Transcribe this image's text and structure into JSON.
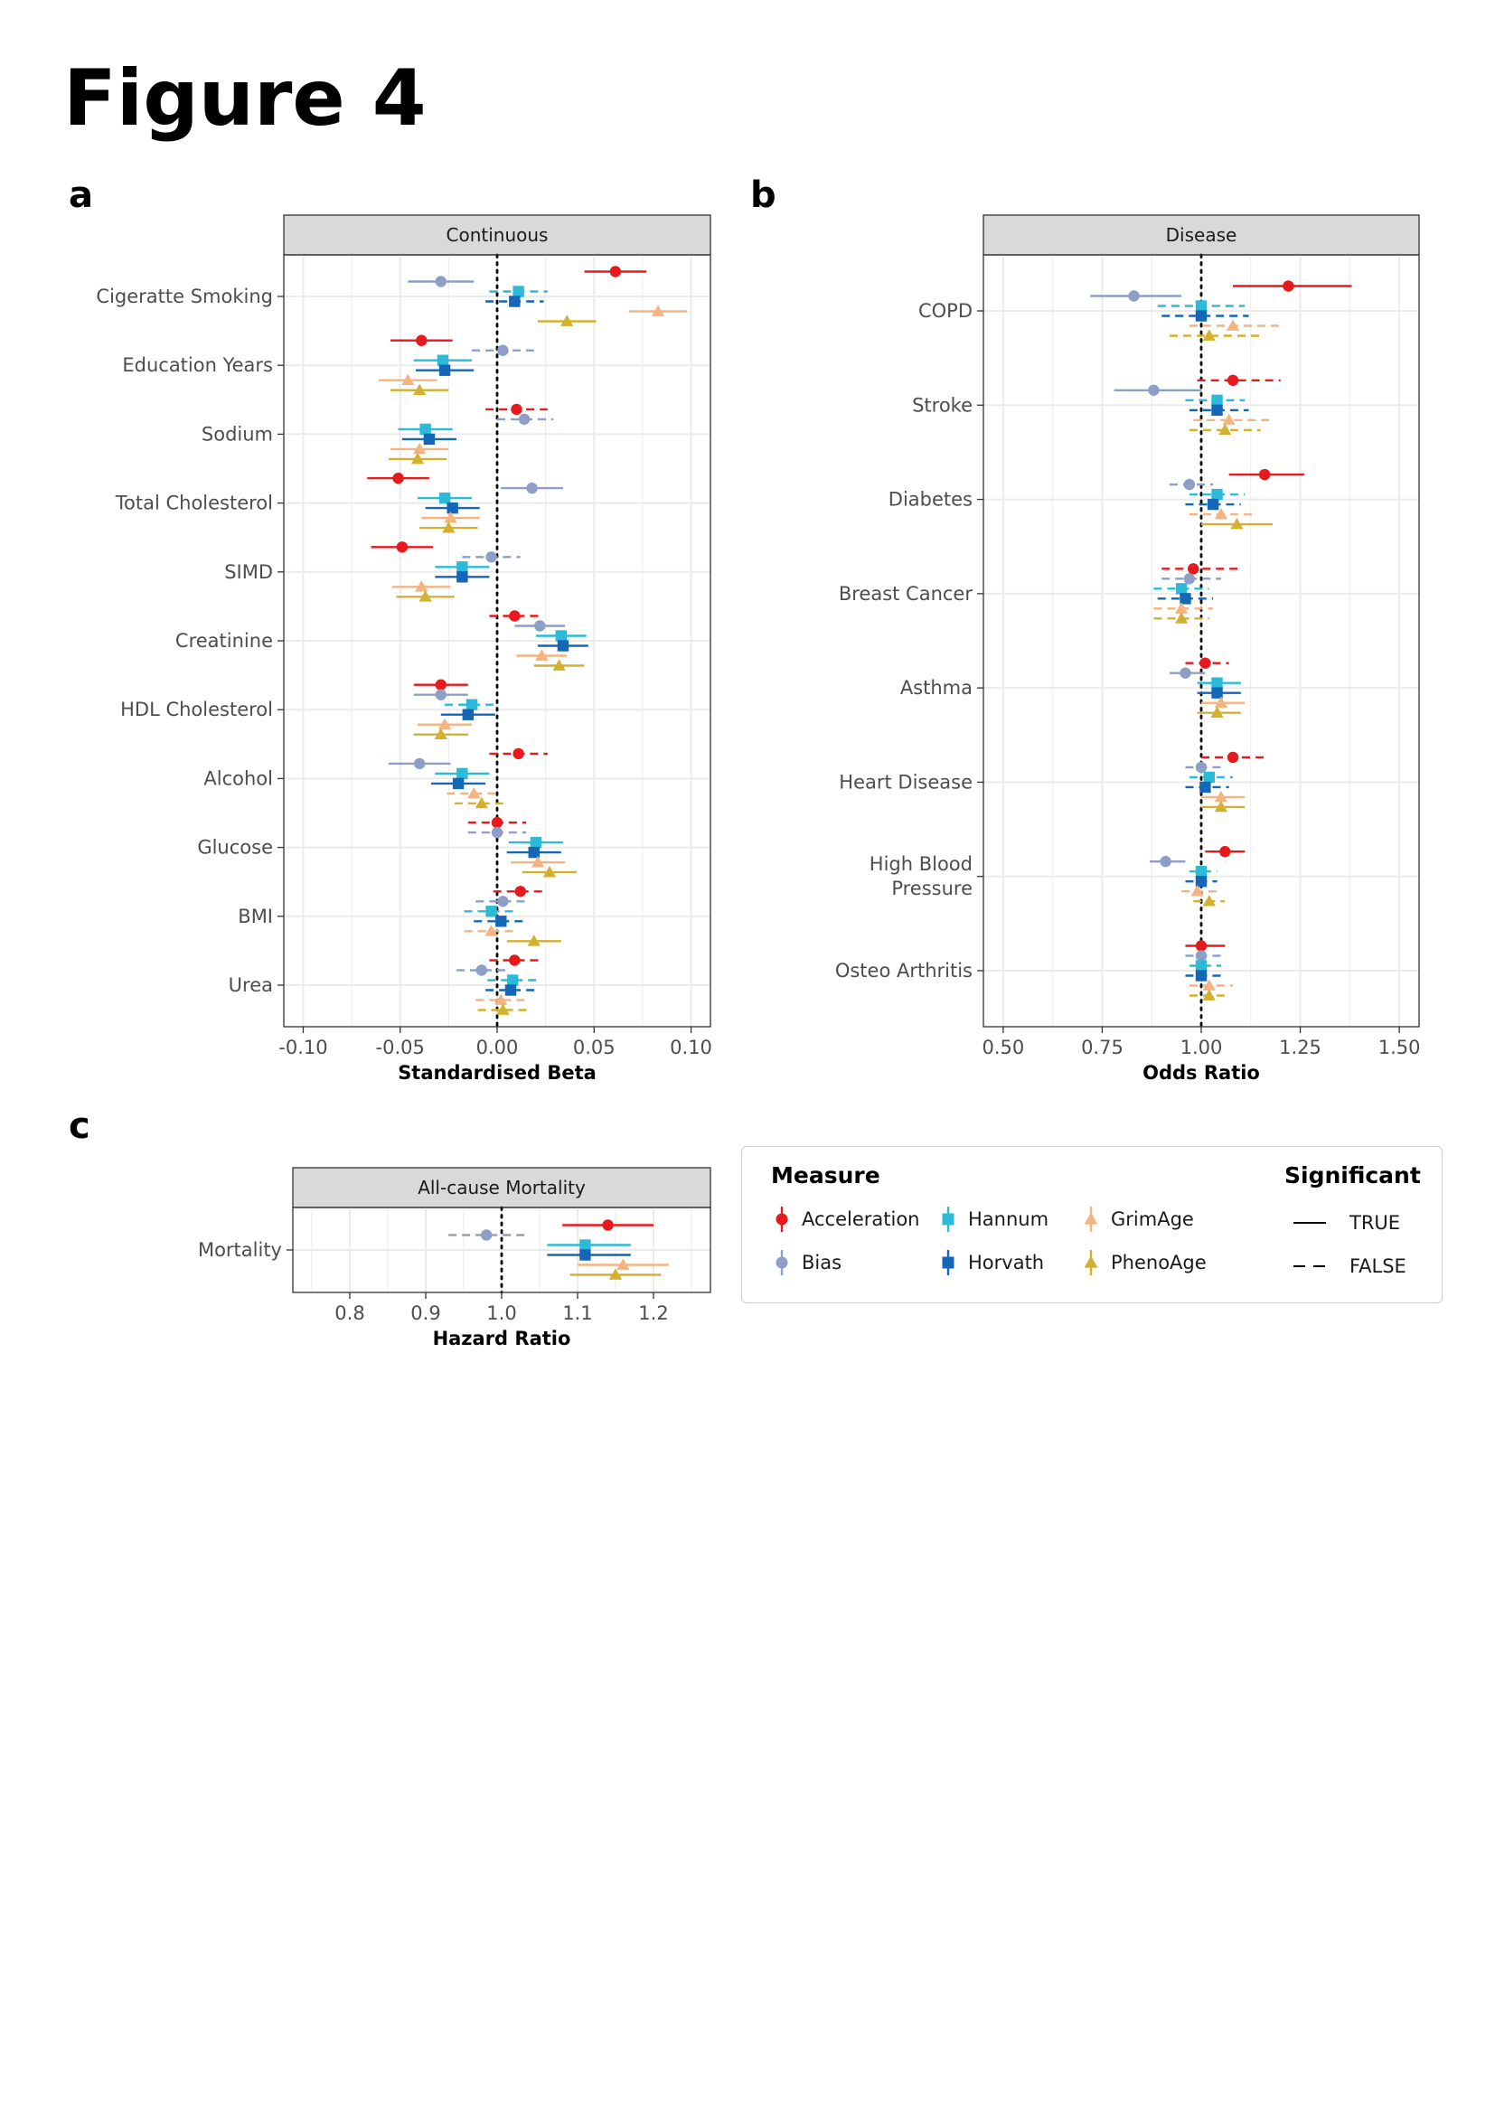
{
  "figure_title": "Figure 4",
  "panel_letters": [
    "a",
    "b",
    "c"
  ],
  "colors": {
    "Acceleration": "#e8191c",
    "Bias": "#8e9fc7",
    "Hannum": "#2bbbd8",
    "Horvath": "#1466b6",
    "GrimAge": "#f3b481",
    "PhenoAge": "#d4b02f"
  },
  "legend": {
    "measure_title": "Measure",
    "measures": [
      {
        "name": "Acceleration",
        "shape": "circle"
      },
      {
        "name": "Bias",
        "shape": "circle"
      },
      {
        "name": "Hannum",
        "shape": "square"
      },
      {
        "name": "Horvath",
        "shape": "square"
      },
      {
        "name": "GrimAge",
        "shape": "triangle"
      },
      {
        "name": "PhenoAge",
        "shape": "triangle"
      }
    ],
    "significant_title": "Significant",
    "significant_levels": [
      "TRUE",
      "FALSE"
    ]
  },
  "chart_data": [
    {
      "id": "a",
      "type": "forest",
      "strip": "Continuous",
      "xlabel": "Standardised Beta",
      "xlim": [
        -0.11,
        0.11
      ],
      "xticks": [
        -0.1,
        -0.05,
        0.0,
        0.05,
        0.1
      ],
      "xtick_labels": [
        "-0.10",
        "-0.05",
        "0.00",
        "0.05",
        "0.10"
      ],
      "reference": 0,
      "grid": true,
      "categories": [
        "Cigeratte Smoking",
        "Education Years",
        "Sodium",
        "Total Cholesterol",
        "SIMD",
        "Creatinine",
        "HDL Cholesterol",
        "Alcohol",
        "Glucose",
        "BMI",
        "Urea"
      ],
      "series": [
        {
          "name": "Acceleration",
          "points": [
            [
              0.061,
              0.045,
              0.077,
              true
            ],
            [
              -0.039,
              -0.055,
              -0.023,
              true
            ],
            [
              0.01,
              -0.006,
              0.026,
              false
            ],
            [
              -0.051,
              -0.067,
              -0.035,
              true
            ],
            [
              -0.049,
              -0.065,
              -0.033,
              true
            ],
            [
              0.009,
              -0.004,
              0.022,
              false
            ],
            [
              -0.029,
              -0.043,
              -0.015,
              true
            ],
            [
              0.011,
              -0.004,
              0.026,
              false
            ],
            [
              0.0,
              -0.015,
              0.015,
              false
            ],
            [
              0.012,
              -0.002,
              0.026,
              false
            ],
            [
              0.009,
              -0.004,
              0.022,
              false
            ]
          ]
        },
        {
          "name": "Bias",
          "points": [
            [
              -0.029,
              -0.046,
              -0.012,
              true
            ],
            [
              0.003,
              -0.013,
              0.019,
              false
            ],
            [
              0.014,
              0.0,
              0.029,
              false
            ],
            [
              0.018,
              0.002,
              0.034,
              true
            ],
            [
              -0.003,
              -0.018,
              0.012,
              false
            ],
            [
              0.022,
              0.009,
              0.035,
              true
            ],
            [
              -0.029,
              -0.043,
              -0.015,
              true
            ],
            [
              -0.04,
              -0.056,
              -0.024,
              true
            ],
            [
              0.0,
              -0.015,
              0.015,
              false
            ],
            [
              0.003,
              -0.011,
              0.017,
              false
            ],
            [
              -0.008,
              -0.021,
              0.005,
              false
            ]
          ]
        },
        {
          "name": "Hannum",
          "points": [
            [
              0.011,
              -0.004,
              0.026,
              false
            ],
            [
              -0.028,
              -0.043,
              -0.013,
              true
            ],
            [
              -0.037,
              -0.051,
              -0.023,
              true
            ],
            [
              -0.027,
              -0.041,
              -0.013,
              true
            ],
            [
              -0.018,
              -0.032,
              -0.004,
              true
            ],
            [
              0.033,
              0.02,
              0.046,
              true
            ],
            [
              -0.013,
              -0.027,
              0.001,
              false
            ],
            [
              -0.018,
              -0.032,
              -0.004,
              true
            ],
            [
              0.02,
              0.006,
              0.034,
              true
            ],
            [
              -0.003,
              -0.017,
              0.011,
              false
            ],
            [
              0.008,
              -0.005,
              0.021,
              false
            ]
          ]
        },
        {
          "name": "Horvath",
          "points": [
            [
              0.009,
              -0.006,
              0.024,
              false
            ],
            [
              -0.027,
              -0.042,
              -0.012,
              true
            ],
            [
              -0.035,
              -0.049,
              -0.021,
              true
            ],
            [
              -0.023,
              -0.037,
              -0.009,
              true
            ],
            [
              -0.018,
              -0.032,
              -0.004,
              true
            ],
            [
              0.034,
              0.021,
              0.047,
              true
            ],
            [
              -0.015,
              -0.029,
              -0.001,
              true
            ],
            [
              -0.02,
              -0.034,
              -0.006,
              true
            ],
            [
              0.019,
              0.005,
              0.033,
              true
            ],
            [
              0.002,
              -0.012,
              0.016,
              false
            ],
            [
              0.007,
              -0.006,
              0.02,
              false
            ]
          ]
        },
        {
          "name": "GrimAge",
          "points": [
            [
              0.083,
              0.068,
              0.098,
              true
            ],
            [
              -0.046,
              -0.061,
              -0.031,
              true
            ],
            [
              -0.04,
              -0.055,
              -0.025,
              true
            ],
            [
              -0.024,
              -0.039,
              -0.009,
              true
            ],
            [
              -0.039,
              -0.054,
              -0.024,
              true
            ],
            [
              0.023,
              0.01,
              0.036,
              true
            ],
            [
              -0.027,
              -0.041,
              -0.013,
              true
            ],
            [
              -0.012,
              -0.026,
              0.002,
              false
            ],
            [
              0.021,
              0.007,
              0.035,
              true
            ],
            [
              -0.003,
              -0.017,
              0.011,
              false
            ],
            [
              0.002,
              -0.011,
              0.015,
              false
            ]
          ]
        },
        {
          "name": "PhenoAge",
          "points": [
            [
              0.036,
              0.021,
              0.051,
              true
            ],
            [
              -0.04,
              -0.055,
              -0.025,
              true
            ],
            [
              -0.041,
              -0.056,
              -0.026,
              true
            ],
            [
              -0.025,
              -0.04,
              -0.01,
              true
            ],
            [
              -0.037,
              -0.052,
              -0.022,
              true
            ],
            [
              0.032,
              0.019,
              0.045,
              true
            ],
            [
              -0.029,
              -0.043,
              -0.015,
              true
            ],
            [
              -0.008,
              -0.022,
              0.006,
              false
            ],
            [
              0.027,
              0.013,
              0.041,
              true
            ],
            [
              0.019,
              0.005,
              0.033,
              true
            ],
            [
              0.003,
              -0.01,
              0.016,
              false
            ]
          ]
        }
      ]
    },
    {
      "id": "b",
      "type": "forest",
      "strip": "Disease",
      "xlabel": "Odds Ratio",
      "xlim": [
        0.45,
        1.55
      ],
      "xticks": [
        0.5,
        0.75,
        1.0,
        1.25,
        1.5
      ],
      "xtick_labels": [
        "0.50",
        "0.75",
        "1.00",
        "1.25",
        "1.50"
      ],
      "reference": 1,
      "grid": true,
      "categories": [
        "COPD",
        "Stroke",
        "Diabetes",
        "Breast Cancer",
        "Asthma",
        "Heart Disease",
        "High Blood Pressure",
        "Osteo Arthritis"
      ],
      "category_display": [
        [
          "COPD"
        ],
        [
          "Stroke"
        ],
        [
          "Diabetes"
        ],
        [
          "Breast Cancer"
        ],
        [
          "Asthma"
        ],
        [
          "Heart Disease"
        ],
        [
          "High Blood",
          "Pressure"
        ],
        [
          "Osteo Arthritis"
        ]
      ],
      "series": [
        {
          "name": "Acceleration",
          "points": [
            [
              1.22,
              1.08,
              1.38,
              true
            ],
            [
              1.08,
              0.99,
              1.2,
              false
            ],
            [
              1.16,
              1.07,
              1.26,
              true
            ],
            [
              0.98,
              0.9,
              1.1,
              false
            ],
            [
              1.01,
              0.96,
              1.07,
              false
            ],
            [
              1.08,
              1.0,
              1.16,
              false
            ],
            [
              1.06,
              1.01,
              1.11,
              true
            ],
            [
              1.0,
              0.96,
              1.06,
              true
            ]
          ]
        },
        {
          "name": "Bias",
          "points": [
            [
              0.83,
              0.72,
              0.95,
              true
            ],
            [
              0.88,
              0.78,
              1.0,
              true
            ],
            [
              0.97,
              0.92,
              1.03,
              false
            ],
            [
              0.97,
              0.9,
              1.05,
              false
            ],
            [
              0.96,
              0.92,
              1.01,
              true
            ],
            [
              1.0,
              0.96,
              1.05,
              false
            ],
            [
              0.91,
              0.87,
              0.96,
              true
            ],
            [
              1.0,
              0.96,
              1.05,
              false
            ]
          ]
        },
        {
          "name": "Hannum",
          "points": [
            [
              1.0,
              0.89,
              1.11,
              false
            ],
            [
              1.04,
              0.96,
              1.11,
              false
            ],
            [
              1.04,
              0.97,
              1.11,
              false
            ],
            [
              0.95,
              0.88,
              1.02,
              false
            ],
            [
              1.04,
              0.99,
              1.1,
              true
            ],
            [
              1.02,
              0.97,
              1.08,
              false
            ],
            [
              1.0,
              0.97,
              1.04,
              false
            ],
            [
              1.0,
              0.97,
              1.05,
              false
            ]
          ]
        },
        {
          "name": "Horvath",
          "points": [
            [
              1.0,
              0.9,
              1.12,
              false
            ],
            [
              1.04,
              0.97,
              1.12,
              false
            ],
            [
              1.03,
              0.96,
              1.1,
              false
            ],
            [
              0.96,
              0.89,
              1.03,
              false
            ],
            [
              1.04,
              0.99,
              1.1,
              true
            ],
            [
              1.01,
              0.96,
              1.07,
              false
            ],
            [
              1.0,
              0.96,
              1.04,
              false
            ],
            [
              1.0,
              0.96,
              1.05,
              false
            ]
          ]
        },
        {
          "name": "GrimAge",
          "points": [
            [
              1.08,
              0.97,
              1.21,
              false
            ],
            [
              1.07,
              0.98,
              1.18,
              false
            ],
            [
              1.05,
              0.97,
              1.13,
              false
            ],
            [
              0.95,
              0.88,
              1.03,
              false
            ],
            [
              1.05,
              1.0,
              1.11,
              true
            ],
            [
              1.05,
              1.0,
              1.11,
              true
            ],
            [
              0.99,
              0.95,
              1.04,
              false
            ],
            [
              1.02,
              0.97,
              1.08,
              false
            ]
          ]
        },
        {
          "name": "PhenoAge",
          "points": [
            [
              1.02,
              0.92,
              1.15,
              false
            ],
            [
              1.06,
              0.97,
              1.15,
              false
            ],
            [
              1.09,
              1.0,
              1.18,
              true
            ],
            [
              0.95,
              0.88,
              1.02,
              false
            ],
            [
              1.04,
              0.99,
              1.1,
              true
            ],
            [
              1.05,
              1.0,
              1.11,
              true
            ],
            [
              1.02,
              0.98,
              1.06,
              false
            ],
            [
              1.02,
              0.97,
              1.07,
              false
            ]
          ]
        }
      ]
    },
    {
      "id": "c",
      "type": "forest",
      "strip": "All-cause Mortality",
      "xlabel": "Hazard Ratio",
      "xlim": [
        0.725,
        1.275
      ],
      "xticks": [
        0.8,
        0.9,
        1.0,
        1.1,
        1.2
      ],
      "xtick_labels": [
        "0.8",
        "0.9",
        "1.0",
        "1.1",
        "1.2"
      ],
      "reference": 1,
      "grid": true,
      "categories": [
        "Mortality"
      ],
      "series": [
        {
          "name": "Acceleration",
          "points": [
            [
              1.14,
              1.08,
              1.2,
              true
            ]
          ]
        },
        {
          "name": "Bias",
          "points": [
            [
              0.98,
              0.93,
              1.03,
              false
            ]
          ]
        },
        {
          "name": "Hannum",
          "points": [
            [
              1.11,
              1.06,
              1.17,
              true
            ]
          ]
        },
        {
          "name": "Horvath",
          "points": [
            [
              1.11,
              1.06,
              1.17,
              true
            ]
          ]
        },
        {
          "name": "GrimAge",
          "points": [
            [
              1.16,
              1.1,
              1.22,
              true
            ]
          ]
        },
        {
          "name": "PhenoAge",
          "points": [
            [
              1.15,
              1.09,
              1.21,
              true
            ]
          ]
        }
      ]
    }
  ]
}
